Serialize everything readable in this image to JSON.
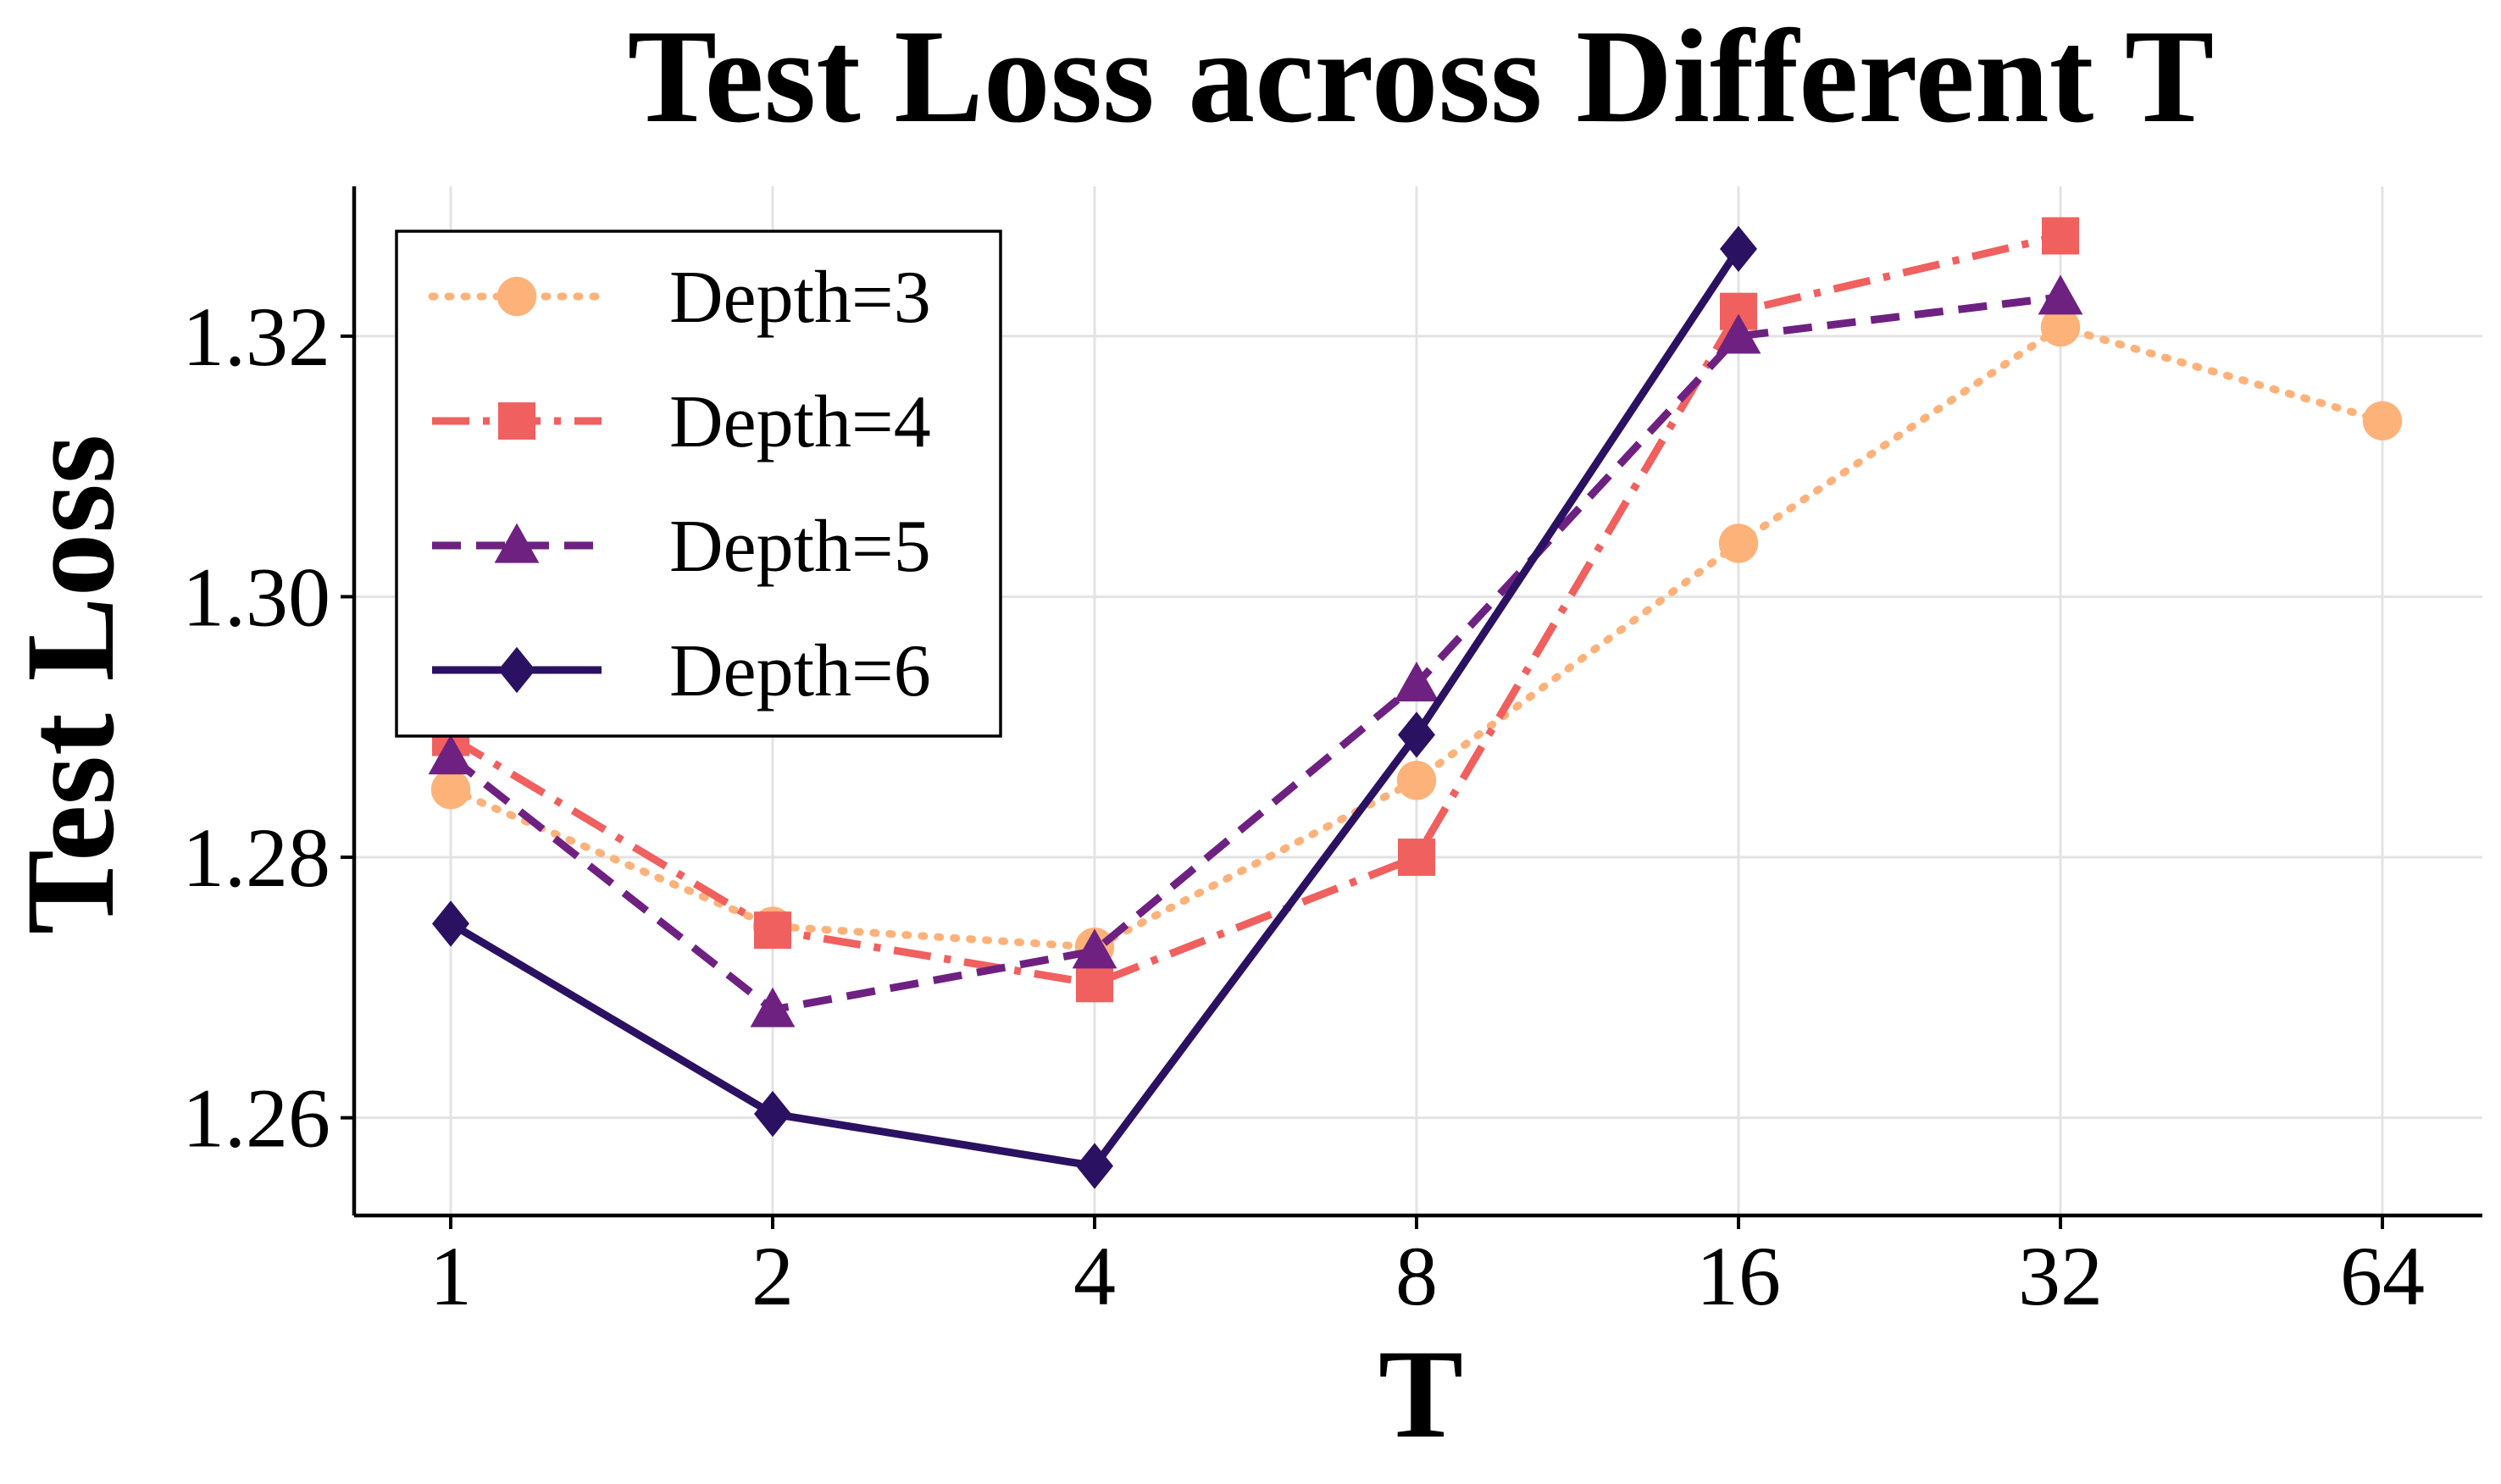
{
  "chart_data": {
    "type": "line",
    "title": "Test Loss across Different T",
    "xlabel": "T",
    "ylabel": "Test Loss",
    "x_categories": [
      "1",
      "2",
      "4",
      "8",
      "16",
      "32",
      "64"
    ],
    "yticks": [
      "1.26",
      "1.28",
      "1.30",
      "1.32"
    ],
    "ylim": [
      1.2525,
      1.3315
    ],
    "grid": true,
    "legend_position": "top-left",
    "series": [
      {
        "name": "Depth=3",
        "color": "#fdb27a",
        "marker": "circle",
        "line_style": "dotted",
        "x": [
          "1",
          "2",
          "4",
          "8",
          "16",
          "32",
          "64"
        ],
        "values": [
          1.2852,
          1.2747,
          1.2731,
          1.2859,
          1.3041,
          1.3207,
          1.3135
        ]
      },
      {
        "name": "Depth=4",
        "color": "#f0605e",
        "marker": "square",
        "line_style": "dashdot",
        "x": [
          "1",
          "2",
          "4",
          "8",
          "16",
          "32"
        ],
        "values": [
          1.2892,
          1.2744,
          1.2703,
          1.28,
          1.3219,
          1.3277
        ]
      },
      {
        "name": "Depth=5",
        "color": "#6e2181",
        "marker": "triangle",
        "line_style": "dashed",
        "x": [
          "1",
          "2",
          "4",
          "8",
          "16",
          "32"
        ],
        "values": [
          1.2877,
          1.2683,
          1.2728,
          1.2933,
          1.32,
          1.323
        ]
      },
      {
        "name": "Depth=6",
        "color": "#2b1162",
        "marker": "diamond",
        "line_style": "solid",
        "x": [
          "1",
          "2",
          "4",
          "8",
          "16"
        ],
        "values": [
          1.2749,
          1.2603,
          1.2563,
          1.2894,
          1.3267
        ]
      }
    ]
  }
}
